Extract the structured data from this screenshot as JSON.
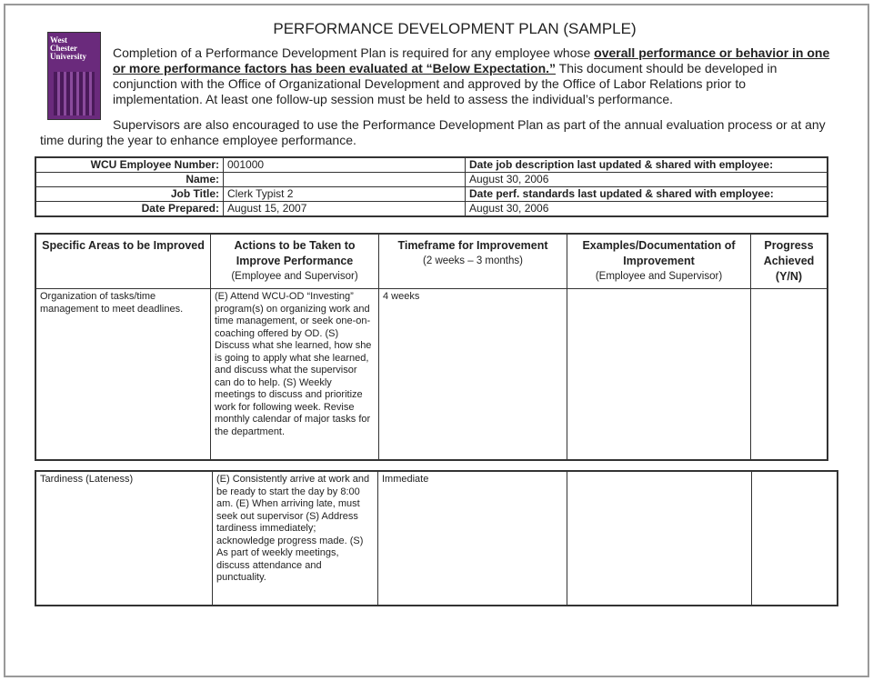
{
  "title": "PERFORMANCE DEVELOPMENT PLAN (SAMPLE)",
  "logo_text": "West Chester University",
  "intro": {
    "p1_before": "Completion of a Performance Development Plan is required for any employee whose ",
    "p1_bold": "overall performance or behavior in one or more performance factors has been evaluated at “Below Expectation.”",
    "p1_after": "  This document should be developed in conjunction with the Office of Organizational Development and approved by the Office of Labor Relations prior to implementation.  At least one follow-up session must be held to assess the individual’s performance.",
    "p2": "Supervisors are also encouraged to use the Performance Development Plan as part of the annual evaluation process or at any time during the year to enhance employee performance."
  },
  "info": {
    "employee_number_label": "WCU Employee Number:",
    "employee_number": "001000",
    "name_label": "Name:",
    "name": "",
    "job_title_label": "Job Title:",
    "job_title": "Clerk Typist 2",
    "date_prepared_label": "Date Prepared:",
    "date_prepared": "August 15, 2007",
    "job_desc_label": "Date job description last updated & shared with employee:",
    "job_desc_date": "August 30, 2006",
    "perf_std_label": "Date perf. standards last updated & shared with employee:",
    "perf_std_date": "August 30, 2006"
  },
  "columns": [
    {
      "title": "Specific Areas to be Improved",
      "sub": ""
    },
    {
      "title": "Actions to be Taken to Improve Performance",
      "sub": "(Employee and Supervisor)"
    },
    {
      "title": "Timeframe for Improvement",
      "sub": "(2 weeks – 3 months)"
    },
    {
      "title": "Examples/Documentation of Improvement",
      "sub": "(Employee and Supervisor)"
    },
    {
      "title": "Progress Achieved (Y/N)",
      "sub": ""
    }
  ],
  "rows": [
    {
      "area": "Organization of tasks/time management to meet deadlines.",
      "actions": "(E)  Attend WCU-OD “Investing” program(s) on organizing work and time management, or seek one-on-coaching offered by OD. (S) Discuss what she learned, how she is going to apply what she learned, and discuss what the supervisor can do to help. (S) Weekly meetings to discuss and prioritize work for following week. Revise monthly calendar of major tasks for the department.",
      "timeframe": "4 weeks",
      "examples": "",
      "progress": ""
    },
    {
      "area": "Tardiness (Lateness)",
      "actions": "(E) Consistently arrive at work and be ready to start the day by 8:00 am. (E) When arriving late, must seek out supervisor (S) Address tardiness immediately; acknowledge progress made. (S) As part of weekly meetings, discuss attendance and punctuality.",
      "timeframe": "Immediate",
      "examples": "",
      "progress": ""
    }
  ]
}
